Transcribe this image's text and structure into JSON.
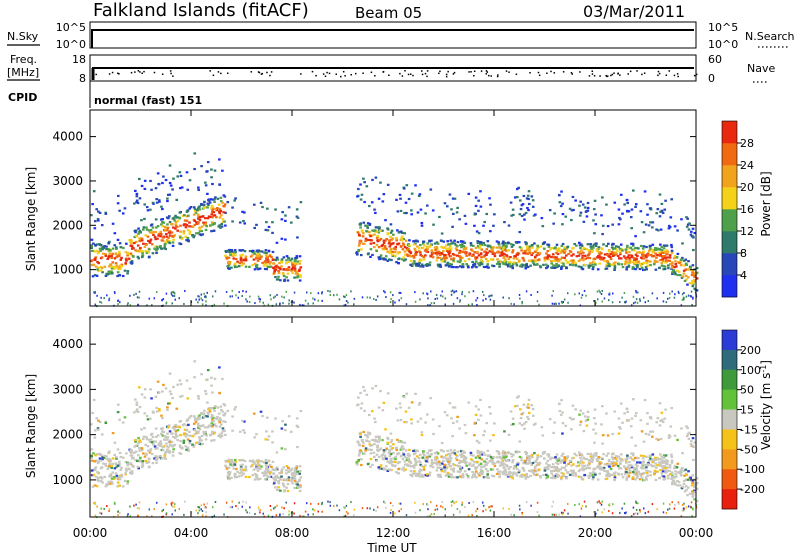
{
  "header": {
    "title": "Falkland Islands (fitACF)",
    "beam": "Beam 05",
    "date": "03/Mar/2011"
  },
  "panels": {
    "nsky": {
      "label": "N.Sky",
      "right_label": "N.Search",
      "left_ticks": [
        "10^5",
        "10^0"
      ],
      "right_ticks": [
        "10^5",
        "10^0"
      ]
    },
    "freq": {
      "label_line1": "Freq.",
      "label_line2": "[MHz]",
      "left_ticks": [
        "18",
        "8"
      ],
      "right_label": "Nave",
      "right_ticks": [
        "60",
        "0"
      ]
    },
    "cpid": {
      "label": "CPID",
      "value": "normal (fast) 151"
    }
  },
  "chart_data": [
    {
      "type": "heatmap",
      "title": "",
      "xlabel": "",
      "ylabel": "Slant Range [km]",
      "yticks": [
        "1000",
        "2000",
        "3000",
        "4000"
      ],
      "ylim": [
        180,
        4600
      ],
      "xlim": [
        0,
        24
      ],
      "colorbar": {
        "label": "Power [dB]",
        "ticks": [
          "4",
          "8",
          "12",
          "16",
          "20",
          "24",
          "28"
        ],
        "colors": [
          "#1f2ff0",
          "#2747b8",
          "#2f7a6a",
          "#4fa04a",
          "#f5d21a",
          "#f2a31e",
          "#f06a12",
          "#e8290f"
        ]
      }
    },
    {
      "type": "heatmap",
      "title": "",
      "xlabel": "Time UT",
      "ylabel": "Slant Range [km]",
      "yticks": [
        "1000",
        "2000",
        "3000",
        "4000"
      ],
      "xticks": [
        "00:00",
        "04:00",
        "08:00",
        "12:00",
        "16:00",
        "20:00",
        "00:00"
      ],
      "ylim": [
        180,
        4600
      ],
      "xlim": [
        0,
        24
      ],
      "colorbar": {
        "label": "Velocity [m s-1]",
        "ticks": [
          "200",
          "100",
          "50",
          "15",
          "-15",
          "-50",
          "-100",
          "-200"
        ],
        "colors": [
          "#2a3bd6",
          "#2f6b7a",
          "#3f9a3c",
          "#62c23a",
          "#c8c8c0",
          "#f5c21a",
          "#f29a1e",
          "#f05a10",
          "#e8200e"
        ]
      }
    }
  ]
}
